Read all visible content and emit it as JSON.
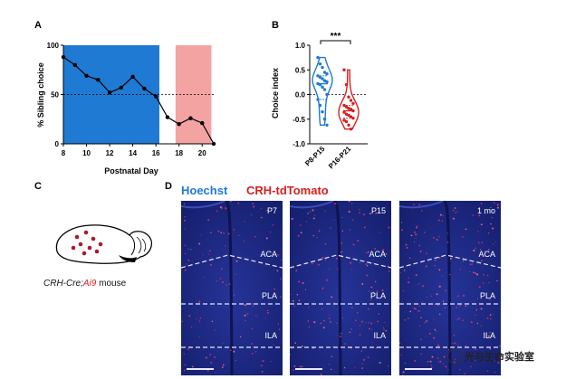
{
  "panels": {
    "a": "A",
    "b": "B",
    "c": "C",
    "d": "D"
  },
  "chart_data": [
    {
      "type": "line",
      "panel": "A",
      "xlabel": "Postnatal Day",
      "ylabel": "% Sibling choice",
      "xlim": [
        8,
        21
      ],
      "ylim": [
        0,
        100
      ],
      "xticks": [
        "8",
        "10",
        "12",
        "14",
        "16",
        "18",
        "20"
      ],
      "yticks": [
        "0",
        "50",
        "100"
      ],
      "reference_line": 50,
      "shaded_regions": [
        {
          "from": 8,
          "to": 16.3,
          "color": "#1f7ad4"
        },
        {
          "from": 17.7,
          "to": 20.8,
          "color": "#f4a3a3"
        }
      ],
      "x": [
        8,
        9,
        10,
        11,
        12,
        13,
        14,
        15,
        16,
        17,
        18,
        19,
        20,
        21
      ],
      "values": [
        88,
        80,
        69,
        65,
        52,
        57,
        68,
        56,
        48,
        27,
        20,
        26,
        21,
        0
      ]
    },
    {
      "type": "violin",
      "panel": "B",
      "ylabel": "Choice index",
      "ylim": [
        -1.0,
        1.0
      ],
      "yticks": [
        "1.0",
        "0.5",
        "0.0",
        "-0.5",
        "-1.0"
      ],
      "significance": "***",
      "series": [
        {
          "name": "P8-P15",
          "color": "#1f7ad4",
          "points": [
            0.75,
            0.62,
            0.55,
            0.45,
            0.42,
            0.38,
            0.35,
            0.32,
            0.28,
            0.26,
            0.22,
            0.2,
            0.15,
            0.1,
            0.0,
            -0.1,
            -0.22,
            -0.35,
            -0.5,
            -0.62
          ]
        },
        {
          "name": "P16-P21",
          "color": "#d62020",
          "points": [
            0.5,
            0.2,
            -0.05,
            -0.12,
            -0.18,
            -0.22,
            -0.25,
            -0.28,
            -0.3,
            -0.33,
            -0.36,
            -0.4,
            -0.42,
            -0.45,
            -0.48,
            -0.52,
            -0.55,
            -0.62,
            -0.7
          ]
        }
      ]
    }
  ],
  "panel_c": {
    "label_prefix": "CRH-Cre;",
    "label_red": "Ai9",
    "label_suffix": " mouse"
  },
  "panel_d": {
    "stain_blue": "Hoechst",
    "stain_red": "CRH-tdTomato",
    "images": [
      {
        "age": "P7",
        "regions": [
          "ACA",
          "PLA",
          "ILA"
        ]
      },
      {
        "age": "P15",
        "regions": [
          "ACA",
          "PLA",
          "ILA"
        ]
      },
      {
        "age": "1 mo",
        "regions": [
          "ACA",
          "PLA",
          "ILA"
        ]
      }
    ]
  },
  "watermark": "光与生命实验室",
  "colors": {
    "blue": "#1f7ad4",
    "red": "#d62020",
    "pink": "#f4a3a3",
    "tissue": "#1e2a8c"
  }
}
